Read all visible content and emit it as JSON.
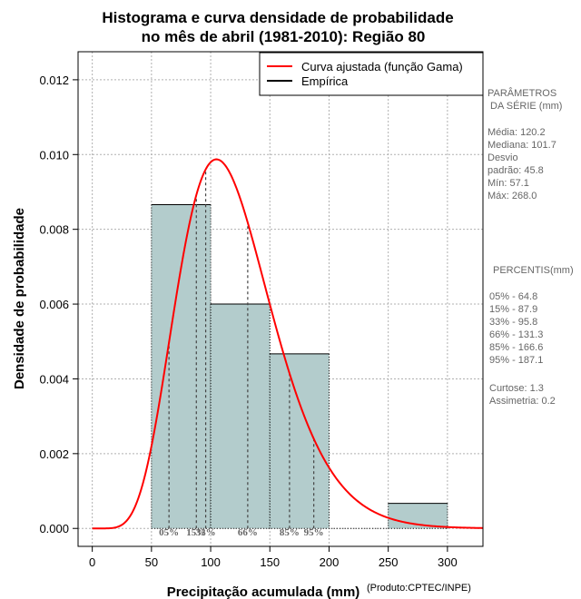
{
  "chart_data": {
    "type": "histogram",
    "title_line1": "Histograma e curva densidade de probabilidade",
    "title_line2": "no mês de abril (1981-2010): Região 80",
    "xlabel": "Precipitação acumulada (mm)",
    "ylabel": "Densidade de probabilidade",
    "credit": "(Produto:CPTEC/INPE)",
    "xlim": [
      -12,
      330
    ],
    "ylim": [
      -0.00048,
      0.01275
    ],
    "x_ticks": [
      0,
      50,
      100,
      150,
      200,
      250,
      300
    ],
    "y_ticks": [
      0.0,
      0.002,
      0.004,
      0.006,
      0.008,
      0.01,
      0.012
    ],
    "y_tick_labels": [
      "0.000",
      "0.002",
      "0.004",
      "0.006",
      "0.008",
      "0.010",
      "0.012"
    ],
    "grid": true,
    "bars": [
      {
        "from": 50,
        "to": 100,
        "density": 0.00866
      },
      {
        "from": 100,
        "to": 150,
        "density": 0.006
      },
      {
        "from": 150,
        "to": 200,
        "density": 0.00467
      },
      {
        "from": 200,
        "to": 250,
        "density": 0
      },
      {
        "from": 250,
        "to": 300,
        "density": 0.00067
      }
    ],
    "bar_color": "#b3cccc",
    "curve": {
      "type": "gamma",
      "shape": 7.9,
      "scale": 15.2,
      "shift": 0,
      "color": "#ff0000"
    },
    "legend": {
      "position": "top-right",
      "entries": [
        {
          "label": "Curva ajustada (função Gama)",
          "color": "#ff0000"
        },
        {
          "label": "Empírica",
          "color": "#000000"
        }
      ]
    },
    "percentile_lines": [
      {
        "label": "05%",
        "value": 64.8
      },
      {
        "label": "15%",
        "value": 87.9
      },
      {
        "label": "33%",
        "value": 95.8
      },
      {
        "label": "66%",
        "value": 131.3
      },
      {
        "label": "85%",
        "value": 166.6
      },
      {
        "label": "95%",
        "value": 187.1
      }
    ]
  },
  "side_panel": {
    "params_title1": "PARÂMETROS",
    "params_title2": "DA SÉRIE (mm)",
    "media": "Média:  120.2",
    "mediana": "Mediana:  101.7",
    "desvio1": "Desvio",
    "desvio2": "padrão:  45.8",
    "min": "Mín:  57.1",
    "max": "Máx:  268.0",
    "percentis_title": "PERCENTIS(mm)",
    "percentis": [
      "05% -   64.8",
      "15% -   87.9",
      "33% -   95.8",
      "66% -   131.3",
      "85% -   166.6",
      "95% -   187.1"
    ],
    "curtose": "Curtose:  1.3",
    "assimetria": "Assimetria:  0.2"
  }
}
